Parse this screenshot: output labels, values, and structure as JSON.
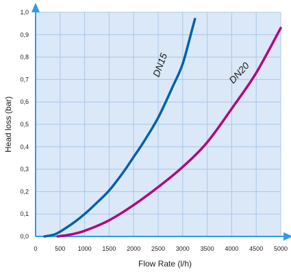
{
  "chart_data": {
    "type": "line",
    "title": "",
    "xlabel": "Flow Rate (l/h)",
    "ylabel": "Head loss (bar)",
    "xlim": [
      0,
      5000
    ],
    "ylim": [
      0,
      1.0
    ],
    "x_ticks": [
      "0",
      "500",
      "1000",
      "1500",
      "2000",
      "2500",
      "3000",
      "3500",
      "4000",
      "4500",
      "5000"
    ],
    "y_ticks": [
      "0,0",
      "0,1",
      "0,2",
      "0,3",
      "0,4",
      "0,5",
      "0,6",
      "0,7",
      "0,8",
      "0,9",
      "1,0"
    ],
    "grid": true,
    "legend": "inline labels along curves",
    "series": [
      {
        "name": "DN15",
        "color": "#0061a8",
        "points": [
          [
            180,
            0.0
          ],
          [
            400,
            0.01
          ],
          [
            600,
            0.035
          ],
          [
            800,
            0.065
          ],
          [
            1000,
            0.1
          ],
          [
            1200,
            0.14
          ],
          [
            1500,
            0.205
          ],
          [
            1800,
            0.29
          ],
          [
            2000,
            0.355
          ],
          [
            2200,
            0.42
          ],
          [
            2500,
            0.53
          ],
          [
            2800,
            0.67
          ],
          [
            3000,
            0.77
          ],
          [
            3200,
            0.93
          ],
          [
            3250,
            0.97
          ]
        ]
      },
      {
        "name": "DN20",
        "color": "#b5007a",
        "points": [
          [
            450,
            0.0
          ],
          [
            700,
            0.008
          ],
          [
            1000,
            0.025
          ],
          [
            1500,
            0.072
          ],
          [
            2000,
            0.14
          ],
          [
            2500,
            0.22
          ],
          [
            3000,
            0.31
          ],
          [
            3500,
            0.42
          ],
          [
            4000,
            0.57
          ],
          [
            4500,
            0.73
          ],
          [
            5000,
            0.93
          ]
        ]
      }
    ],
    "background_color": "#dbe8f7",
    "grid_color": "#a9c6e8",
    "arrow_color": "#2e9be6"
  }
}
